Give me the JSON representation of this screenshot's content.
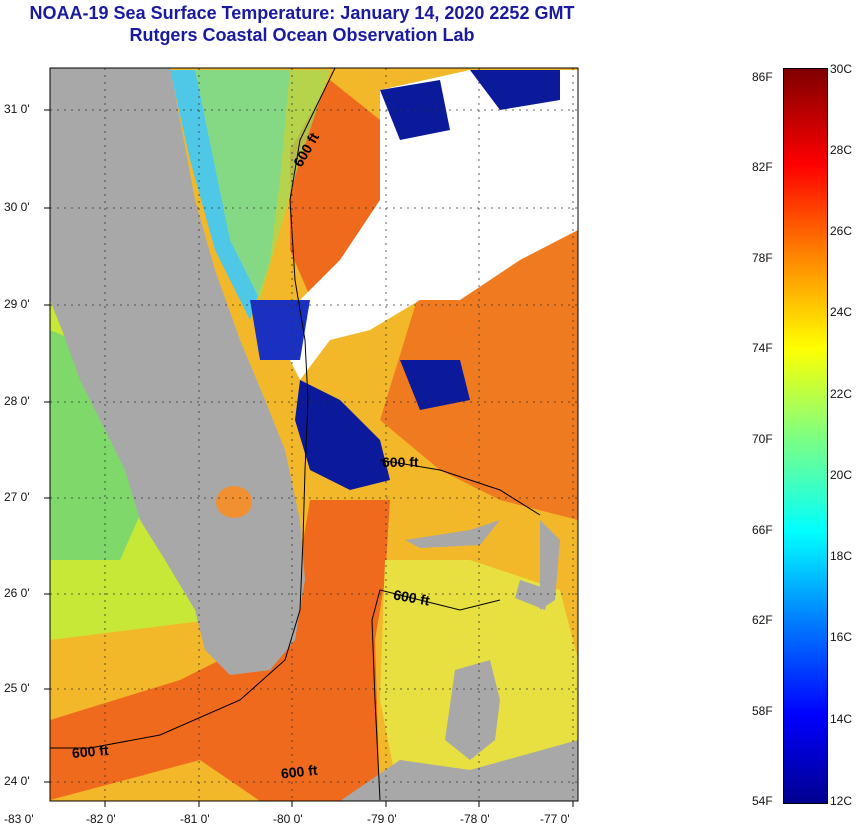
{
  "title": {
    "line1": "NOAA-19 Sea Surface Temperature:  January 14, 2020 2252 GMT",
    "line2": "Rutgers Coastal Ocean Observation Lab"
  },
  "map": {
    "lat_labels": [
      "31 0'",
      "30 0'",
      "29 0'",
      "28 0'",
      "27 0'",
      "26 0'",
      "25 0'",
      "24 0'"
    ],
    "lon_labels": [
      "-83 0'",
      "-82 0'",
      "-81 0'",
      "-80 0'",
      "-79 0'",
      "-78 0'",
      "-77 0'"
    ],
    "isobath_labels": [
      "600 ft",
      "600 ft",
      "600 ft",
      "600 ft",
      "600 ft"
    ],
    "colors": {
      "land": "#a8a8a8",
      "cloud": "#ffffff",
      "warm": "#f06a1e",
      "mid": "#f5c018",
      "cold": "#0a1a9a"
    }
  },
  "colorbar": {
    "fahrenheit": [
      "86F",
      "82F",
      "78F",
      "74F",
      "70F",
      "66F",
      "62F",
      "58F",
      "54F"
    ],
    "celsius": [
      "30C",
      "28C",
      "26C",
      "24C",
      "22C",
      "20C",
      "18C",
      "16C",
      "14C",
      "12C"
    ],
    "stops": [
      "#00008f",
      "#0000ff",
      "#0080ff",
      "#00ffff",
      "#80ff80",
      "#ffff00",
      "#ff8000",
      "#ff0000",
      "#800000"
    ]
  }
}
